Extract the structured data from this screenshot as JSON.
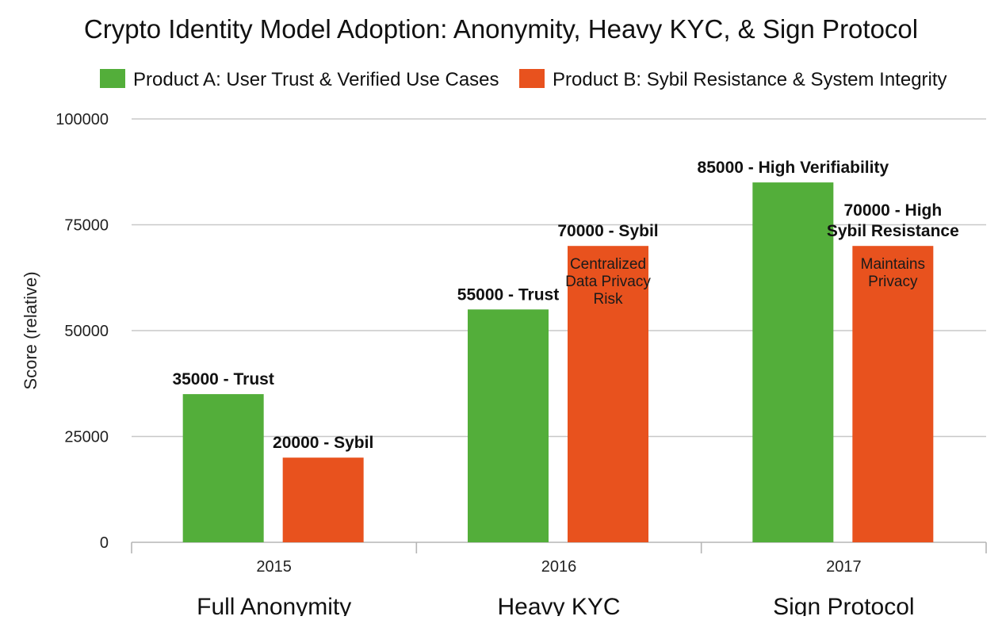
{
  "chart_data": {
    "type": "bar",
    "title": "Crypto Identity Model Adoption: Anonymity, Heavy KYC, & Sign Protocol",
    "xlabel": "",
    "ylabel": "Score (relative)",
    "ylim": [
      0,
      100000
    ],
    "yticks": [
      0,
      25000,
      50000,
      75000,
      100000
    ],
    "grid": true,
    "legend_position": "top",
    "categories": [
      "2015",
      "2016",
      "2017"
    ],
    "group_labels": [
      "Full Anonymity",
      "Heavy KYC",
      "Sign Protocol"
    ],
    "series": [
      {
        "name": "Product A: User Trust & Verified Use Cases",
        "color": "#53AE3A",
        "values": [
          35000,
          55000,
          85000
        ],
        "labels": [
          [
            "35000 - Trust"
          ],
          [
            "55000 - Trust"
          ],
          [
            "85000 - High Verifiability"
          ]
        ],
        "notes": [
          [],
          [],
          []
        ]
      },
      {
        "name": "Product B: Sybil Resistance & System Integrity",
        "color": "#E8521E",
        "values": [
          20000,
          70000,
          70000
        ],
        "labels": [
          [
            "20000 - Sybil"
          ],
          [
            "70000 - Sybil"
          ],
          [
            "70000 - High",
            "Sybil Resistance"
          ]
        ],
        "notes": [
          [],
          [
            "Centralized",
            "Data Privacy",
            "Risk"
          ],
          [
            "Maintains",
            "Privacy"
          ]
        ]
      }
    ]
  }
}
